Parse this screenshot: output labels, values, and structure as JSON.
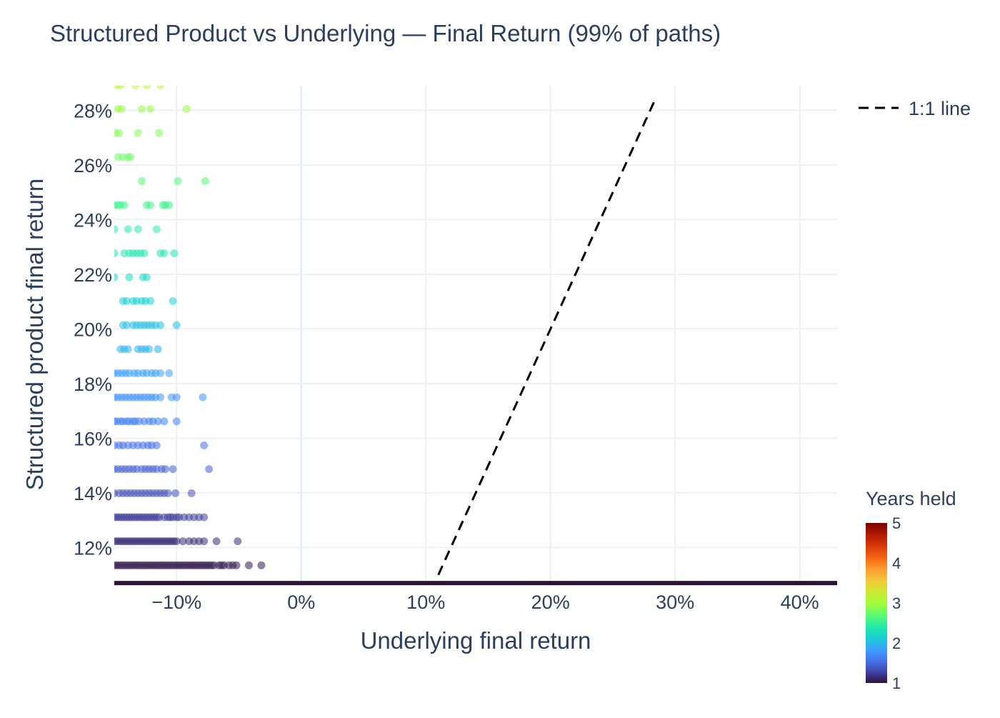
{
  "chart_data": {
    "type": "scatter",
    "title": "Structured Product vs Underlying — Final Return (99% of paths)",
    "xlabel": "Underlying final return",
    "ylabel": "Structured product final return",
    "xlim": [
      -0.15,
      0.43
    ],
    "ylim": [
      0.106,
      0.289
    ],
    "x_ticks": [
      -0.1,
      0.0,
      0.1,
      0.2,
      0.3,
      0.4
    ],
    "x_tick_labels": [
      "−10%",
      "0%",
      "10%",
      "20%",
      "30%",
      "40%"
    ],
    "y_ticks": [
      0.12,
      0.14,
      0.16,
      0.18,
      0.2,
      0.22,
      0.24,
      0.26,
      0.28
    ],
    "y_tick_labels": [
      "12%",
      "14%",
      "16%",
      "18%",
      "20%",
      "22%",
      "24%",
      "26%",
      "28%"
    ],
    "grid": true,
    "legend_position": "top-right",
    "legend": [
      {
        "label": "1:1 line",
        "style": "dashed",
        "color": "#000000"
      }
    ],
    "reference_line": {
      "name": "1:1 line",
      "x": [
        0.11,
        0.285
      ],
      "y": [
        0.11,
        0.285
      ]
    },
    "colorbar": {
      "title": "Years held",
      "range": [
        1,
        5
      ],
      "tick_values": [
        1,
        2,
        3,
        4,
        5
      ],
      "tick_labels": [
        "1",
        "2",
        "3",
        "4",
        "5"
      ],
      "colorscale": [
        "#30123b",
        "#4145ab",
        "#4675ed",
        "#39a2fc",
        "#1bcfd4",
        "#24eca6",
        "#61fc6c",
        "#a4fc3b",
        "#d1e834",
        "#f3c63a",
        "#fe9b2d",
        "#f36315",
        "#d93806",
        "#b11901",
        "#7a0402"
      ]
    },
    "floor_band": {
      "y": 0.107,
      "x_range": [
        -0.15,
        0.43
      ],
      "color": "#30123b"
    },
    "rows": [
      {
        "y": 0.1135,
        "years": 1.05,
        "x": [
          -0.15,
          -0.148,
          -0.146,
          -0.144,
          -0.142,
          -0.14,
          -0.138,
          -0.136,
          -0.134,
          -0.132,
          -0.13,
          -0.128,
          -0.126,
          -0.124,
          -0.122,
          -0.12,
          -0.118,
          -0.116,
          -0.114,
          -0.112,
          -0.11,
          -0.108,
          -0.106,
          -0.104,
          -0.102,
          -0.1,
          -0.098,
          -0.096,
          -0.094,
          -0.092,
          -0.09,
          -0.088,
          -0.086,
          -0.084,
          -0.082,
          -0.08,
          -0.078,
          -0.076,
          -0.074,
          -0.072,
          -0.07,
          -0.066,
          -0.064,
          -0.062,
          -0.058,
          -0.055,
          -0.052,
          -0.042,
          -0.032
        ]
      },
      {
        "y": 0.1223,
        "years": 1.15,
        "x": [
          -0.15,
          -0.148,
          -0.146,
          -0.144,
          -0.142,
          -0.14,
          -0.138,
          -0.136,
          -0.134,
          -0.132,
          -0.13,
          -0.128,
          -0.126,
          -0.124,
          -0.122,
          -0.12,
          -0.118,
          -0.116,
          -0.114,
          -0.112,
          -0.11,
          -0.108,
          -0.106,
          -0.104,
          -0.102,
          -0.1,
          -0.095,
          -0.09,
          -0.086,
          -0.082,
          -0.078,
          -0.068,
          -0.051
        ]
      },
      {
        "y": 0.1311,
        "years": 1.25,
        "x": [
          -0.15,
          -0.148,
          -0.146,
          -0.144,
          -0.142,
          -0.14,
          -0.138,
          -0.136,
          -0.134,
          -0.132,
          -0.13,
          -0.128,
          -0.126,
          -0.124,
          -0.122,
          -0.12,
          -0.118,
          -0.116,
          -0.114,
          -0.11,
          -0.107,
          -0.105,
          -0.103,
          -0.1,
          -0.098,
          -0.094,
          -0.09,
          -0.086,
          -0.082,
          -0.078
        ]
      },
      {
        "y": 0.1399,
        "years": 1.35,
        "x": [
          -0.15,
          -0.146,
          -0.143,
          -0.14,
          -0.137,
          -0.134,
          -0.131,
          -0.128,
          -0.125,
          -0.122,
          -0.119,
          -0.116,
          -0.113,
          -0.11,
          -0.107,
          -0.101,
          -0.088
        ]
      },
      {
        "y": 0.1487,
        "years": 1.45,
        "x": [
          -0.15,
          -0.147,
          -0.144,
          -0.141,
          -0.138,
          -0.135,
          -0.132,
          -0.128,
          -0.125,
          -0.122,
          -0.119,
          -0.116,
          -0.112,
          -0.109,
          -0.103,
          -0.074
        ]
      },
      {
        "y": 0.1574,
        "years": 1.55,
        "x": [
          -0.15,
          -0.146,
          -0.143,
          -0.139,
          -0.135,
          -0.131,
          -0.127,
          -0.123,
          -0.12,
          -0.116,
          -0.078
        ]
      },
      {
        "y": 0.1662,
        "years": 1.65,
        "x": [
          -0.15,
          -0.148,
          -0.145,
          -0.143,
          -0.14,
          -0.138,
          -0.135,
          -0.133,
          -0.13,
          -0.126,
          -0.122,
          -0.119,
          -0.115,
          -0.11,
          -0.1
        ]
      },
      {
        "y": 0.175,
        "years": 1.75,
        "x": [
          -0.15,
          -0.147,
          -0.144,
          -0.141,
          -0.138,
          -0.135,
          -0.132,
          -0.129,
          -0.126,
          -0.123,
          -0.12,
          -0.117,
          -0.113,
          -0.104,
          -0.1,
          -0.079
        ]
      },
      {
        "y": 0.1838,
        "years": 1.85,
        "x": [
          -0.15,
          -0.147,
          -0.144,
          -0.141,
          -0.138,
          -0.134,
          -0.131,
          -0.127,
          -0.124,
          -0.12,
          -0.117,
          -0.113,
          -0.106
        ]
      },
      {
        "y": 0.1926,
        "years": 1.95,
        "x": [
          -0.145,
          -0.142,
          -0.139,
          -0.131,
          -0.128,
          -0.125,
          -0.122,
          -0.115
        ]
      },
      {
        "y": 0.2014,
        "years": 2.05,
        "x": [
          -0.143,
          -0.14,
          -0.135,
          -0.132,
          -0.129,
          -0.126,
          -0.123,
          -0.12,
          -0.117,
          -0.113,
          -0.1
        ]
      },
      {
        "y": 0.2102,
        "years": 2.15,
        "x": [
          -0.143,
          -0.14,
          -0.135,
          -0.132,
          -0.128,
          -0.125,
          -0.121,
          -0.103
        ]
      },
      {
        "y": 0.2189,
        "years": 2.25,
        "x": [
          -0.15,
          -0.138,
          -0.127,
          -0.124
        ]
      },
      {
        "y": 0.2277,
        "years": 2.35,
        "x": [
          -0.15,
          -0.142,
          -0.138,
          -0.135,
          -0.132,
          -0.129,
          -0.126,
          -0.113,
          -0.11,
          -0.102
        ]
      },
      {
        "y": 0.2365,
        "years": 2.45,
        "x": [
          -0.15,
          -0.139,
          -0.131,
          -0.116
        ]
      },
      {
        "y": 0.2453,
        "years": 2.55,
        "x": [
          -0.15,
          -0.147,
          -0.145,
          -0.142,
          -0.124,
          -0.121,
          -0.111,
          -0.109,
          -0.106
        ]
      },
      {
        "y": 0.2541,
        "years": 2.65,
        "x": [
          -0.128,
          -0.099,
          -0.077
        ]
      },
      {
        "y": 0.2629,
        "years": 2.75,
        "x": [
          -0.147,
          -0.143,
          -0.139,
          -0.137
        ]
      },
      {
        "y": 0.2717,
        "years": 2.85,
        "x": [
          -0.149,
          -0.146,
          -0.131,
          -0.114
        ]
      },
      {
        "y": 0.2805,
        "years": 2.95,
        "x": [
          -0.147,
          -0.144,
          -0.128,
          -0.121,
          -0.092
        ]
      },
      {
        "y": 0.2892,
        "years": 3.05,
        "x": [
          -0.148,
          -0.145,
          -0.133,
          -0.124,
          -0.113
        ]
      }
    ]
  }
}
